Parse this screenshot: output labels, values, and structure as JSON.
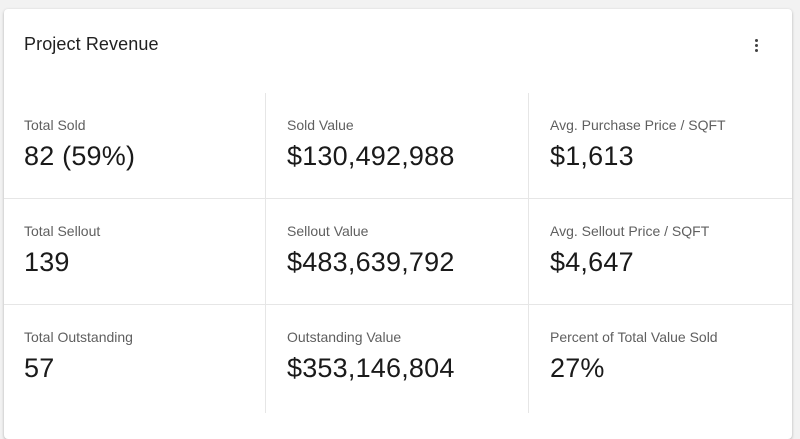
{
  "card": {
    "title": "Project Revenue",
    "menu_icon": "more-vertical-icon"
  },
  "metrics": [
    {
      "label": "Total Sold",
      "value": "82 (59%)"
    },
    {
      "label": "Sold Value",
      "value": "$130,492,988"
    },
    {
      "label": "Avg. Purchase Price / SQFT",
      "value": "$1,613"
    },
    {
      "label": "Total Sellout",
      "value": "139"
    },
    {
      "label": "Sellout Value",
      "value": "$483,639,792"
    },
    {
      "label": "Avg. Sellout Price / SQFT",
      "value": "$4,647"
    },
    {
      "label": "Total Outstanding",
      "value": "57"
    },
    {
      "label": "Outstanding Value",
      "value": "$353,146,804"
    },
    {
      "label": "Percent of Total Value Sold",
      "value": "27%"
    }
  ],
  "colors": {
    "background": "#f2f2f2",
    "card": "#ffffff",
    "divider": "#e6e6e6",
    "label": "#5f5f5f",
    "value": "#1a1a1a"
  }
}
